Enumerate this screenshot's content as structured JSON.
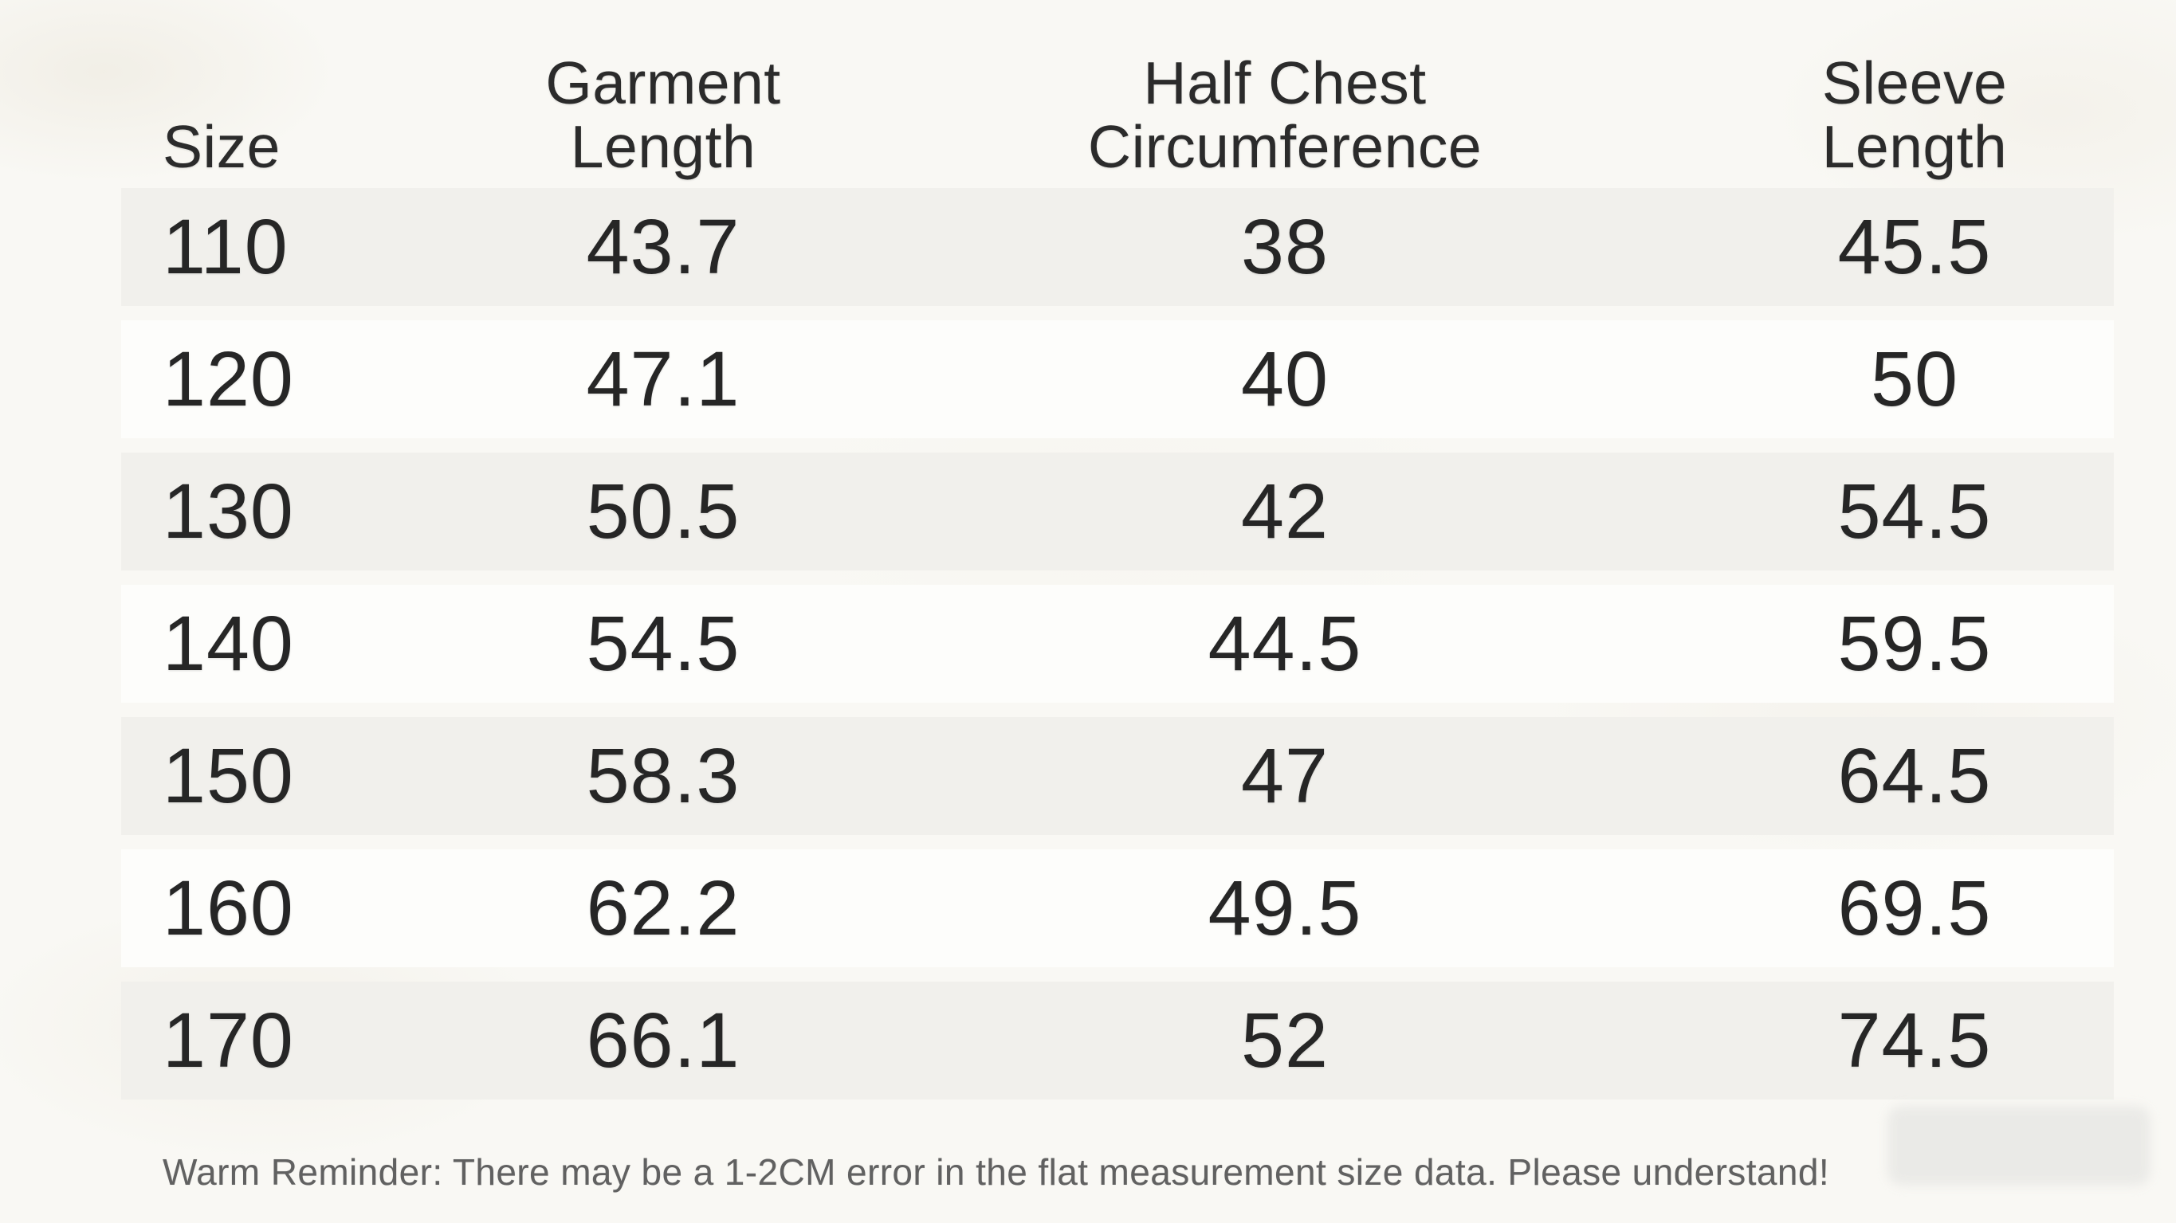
{
  "page": {
    "background_color": "#f9f8f4",
    "band_odd_color": "#f1f0ec",
    "band_even_color": "#fdfdfb",
    "text_color": "#262626",
    "footer_text_color": "#616161",
    "smudge_color": "#e9e9e6"
  },
  "table": {
    "headers": {
      "size": "Size",
      "garment_length_line1": "Garment",
      "garment_length_line2": "Length",
      "half_chest_line1": "Half Chest",
      "half_chest_line2": "Circumference",
      "sleeve_length_line1": "Sleeve",
      "sleeve_length_line2": "Length"
    },
    "rows": [
      {
        "size": "110",
        "garment_length": "43.7",
        "half_chest": "38",
        "sleeve_length": "45.5"
      },
      {
        "size": "120",
        "garment_length": "47.1",
        "half_chest": "40",
        "sleeve_length": "50"
      },
      {
        "size": "130",
        "garment_length": "50.5",
        "half_chest": "42",
        "sleeve_length": "54.5"
      },
      {
        "size": "140",
        "garment_length": "54.5",
        "half_chest": "44.5",
        "sleeve_length": "59.5"
      },
      {
        "size": "150",
        "garment_length": "58.3",
        "half_chest": "47",
        "sleeve_length": "64.5"
      },
      {
        "size": "160",
        "garment_length": "62.2",
        "half_chest": "49.5",
        "sleeve_length": "69.5"
      },
      {
        "size": "170",
        "garment_length": "66.1",
        "half_chest": "52",
        "sleeve_length": "74.5"
      }
    ]
  },
  "footer": {
    "note": "Warm Reminder: There may be a 1-2CM error in the flat measurement size data. Please understand!"
  }
}
